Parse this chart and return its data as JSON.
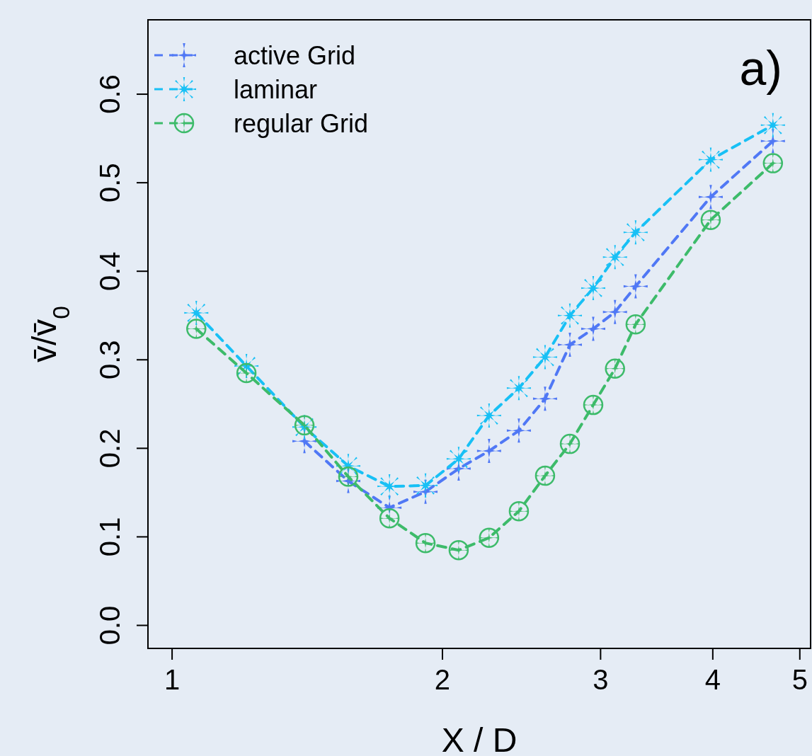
{
  "chart_data": {
    "type": "line",
    "xlabel": "X / D",
    "ylabel": "v̄/v̄$_{0}$",
    "annotations": [
      "a)"
    ],
    "log": "x",
    "xlim": [
      0.94,
      5.14
    ],
    "ylim": [
      -0.026,
      0.684
    ],
    "xticks": [
      1,
      2,
      3,
      4,
      5
    ],
    "yticks": [
      {
        "value": 0,
        "label": "0.0"
      },
      0.1,
      0.2,
      0.3,
      0.4,
      0.5,
      0.6
    ],
    "grid": false,
    "legend": "top left",
    "line_style": "dashed",
    "x": [
      1.064,
      1.21,
      1.404,
      1.571,
      1.746,
      1.915,
      2.085,
      2.254,
      2.433,
      2.602,
      2.773,
      2.944,
      3.113,
      3.282,
      3.979,
      4.667
    ],
    "series": [
      {
        "name": "active Grid",
        "color": "#5078f5",
        "marker": "cross",
        "values": [
          null,
          null,
          0.208,
          0.163,
          0.133,
          0.151,
          0.177,
          0.197,
          0.22,
          0.256,
          0.317,
          0.335,
          0.354,
          0.383,
          0.484,
          0.547
        ]
      },
      {
        "name": "laminar",
        "color": "#18c0f5",
        "marker": "star",
        "values": [
          0.353,
          0.293,
          0.224,
          0.18,
          0.157,
          0.158,
          0.188,
          0.237,
          0.268,
          0.303,
          0.35,
          0.381,
          0.416,
          0.444,
          0.526,
          0.565
        ]
      },
      {
        "name": "regular Grid",
        "color": "#3dbb6a",
        "marker": "circle",
        "values": [
          0.335,
          0.285,
          0.226,
          0.168,
          0.121,
          0.093,
          0.085,
          0.099,
          0.129,
          0.169,
          0.205,
          0.249,
          0.29,
          0.34,
          0.458,
          0.522
        ]
      }
    ]
  }
}
